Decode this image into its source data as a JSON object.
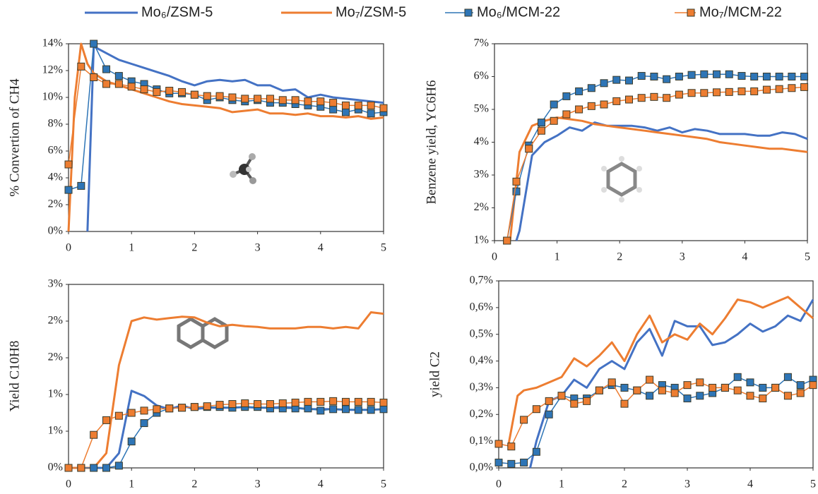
{
  "chart_data": [
    {
      "type": "line",
      "ylabel": "% Convertion of CH4",
      "xlim": [
        0,
        5
      ],
      "xticks": [
        0,
        1,
        2,
        3,
        4,
        5
      ],
      "ylim": [
        0,
        14
      ],
      "yticks": [
        {
          "value": 0,
          "label": "0%"
        },
        {
          "value": 2,
          "label": "2%"
        },
        {
          "value": 4,
          "label": "4%"
        },
        {
          "value": 6,
          "label": "6%"
        },
        {
          "value": 8,
          "label": "8%"
        },
        {
          "value": 10,
          "label": "10%"
        },
        {
          "value": 12,
          "label": "12%"
        },
        {
          "value": 14,
          "label": "14%"
        }
      ],
      "series": [
        {
          "name": "Mo₆/ZSM-5",
          "color": "#4472c4",
          "linewidth": 3,
          "x": [
            0.3,
            0.4,
            0.6,
            0.8,
            1,
            1.2,
            1.4,
            1.6,
            1.8,
            2,
            2.2,
            2.4,
            2.6,
            2.8,
            3,
            3.2,
            3.4,
            3.6,
            3.8,
            4,
            4.2,
            4.4,
            4.6,
            4.8,
            5
          ],
          "values": [
            0,
            13.8,
            13.3,
            12.8,
            12.5,
            12.2,
            11.9,
            11.6,
            11.2,
            10.9,
            11.2,
            11.3,
            11.2,
            11.3,
            10.9,
            10.9,
            10.5,
            10.6,
            10.0,
            10.2,
            10.0,
            9.9,
            9.8,
            9.7,
            9.6
          ]
        },
        {
          "name": "Mo₇/ZSM-5",
          "color": "#ed7d31",
          "linewidth": 3,
          "x": [
            0,
            0.1,
            0.2,
            0.3,
            0.4,
            0.6,
            0.8,
            1,
            1.2,
            1.4,
            1.6,
            1.8,
            2,
            2.2,
            2.4,
            2.6,
            2.8,
            3,
            3.2,
            3.4,
            3.6,
            3.8,
            4,
            4.2,
            4.4,
            4.6,
            4.8,
            5
          ],
          "values": [
            0,
            10,
            14,
            12.5,
            11.8,
            11.2,
            10.9,
            10.6,
            10.3,
            10.0,
            9.7,
            9.5,
            9.4,
            9.3,
            9.2,
            8.9,
            9.0,
            9.1,
            8.8,
            8.8,
            8.7,
            8.8,
            8.6,
            8.6,
            8.5,
            8.6,
            8.4,
            8.5
          ]
        },
        {
          "name": "Mo₆/MCM-22",
          "color": "#2e75b6",
          "linewidth": 1.5,
          "marker": "square",
          "x": [
            0,
            0.2,
            0.4,
            0.6,
            0.8,
            1,
            1.2,
            1.4,
            1.6,
            1.8,
            2,
            2.2,
            2.4,
            2.6,
            2.8,
            3,
            3.2,
            3.4,
            3.6,
            3.8,
            4,
            4.2,
            4.4,
            4.6,
            4.8,
            5
          ],
          "values": [
            3.1,
            3.4,
            14,
            12.1,
            11.6,
            11.2,
            11.0,
            10.6,
            10.3,
            10.3,
            10.2,
            9.8,
            10.0,
            9.8,
            9.7,
            9.8,
            9.6,
            9.6,
            9.5,
            9.4,
            9.3,
            9.1,
            8.9,
            9.1,
            8.8,
            8.9
          ]
        },
        {
          "name": "Mo₇/MCM-22",
          "color": "#ed7d31",
          "linewidth": 1.5,
          "marker": "square",
          "x": [
            0,
            0.2,
            0.4,
            0.6,
            0.8,
            1,
            1.2,
            1.4,
            1.6,
            1.8,
            2,
            2.2,
            2.4,
            2.6,
            2.8,
            3,
            3.2,
            3.4,
            3.6,
            3.8,
            4,
            4.2,
            4.4,
            4.6,
            4.8,
            5
          ],
          "values": [
            5.0,
            12.3,
            11.5,
            11.0,
            11.0,
            10.8,
            10.6,
            10.4,
            10.5,
            10.4,
            10.2,
            10.1,
            10.1,
            10.0,
            9.9,
            9.9,
            9.9,
            9.8,
            9.8,
            9.7,
            9.7,
            9.6,
            9.4,
            9.4,
            9.4,
            9.2
          ]
        }
      ]
    },
    {
      "type": "line",
      "ylabel": "Benzene yield, YC6H6",
      "xlim": [
        0,
        5
      ],
      "xticks": [
        0,
        1,
        2,
        3,
        4,
        5
      ],
      "ylim": [
        1,
        7
      ],
      "yticks": [
        {
          "value": 1,
          "label": "1%"
        },
        {
          "value": 2,
          "label": "2%"
        },
        {
          "value": 3,
          "label": "3%"
        },
        {
          "value": 4,
          "label": "4%"
        },
        {
          "value": 5,
          "label": "5%"
        },
        {
          "value": 6,
          "label": "6%"
        },
        {
          "value": 7,
          "label": "7%"
        }
      ],
      "series": [
        {
          "color": "#4472c4",
          "linewidth": 3,
          "x": [
            0.35,
            0.4,
            0.6,
            0.8,
            1,
            1.2,
            1.4,
            1.6,
            1.8,
            2,
            2.2,
            2.4,
            2.6,
            2.8,
            3,
            3.2,
            3.4,
            3.6,
            3.8,
            4,
            4.2,
            4.4,
            4.6,
            4.8,
            5
          ],
          "values": [
            1.0,
            1.3,
            3.6,
            4.0,
            4.2,
            4.45,
            4.35,
            4.6,
            4.5,
            4.5,
            4.5,
            4.45,
            4.35,
            4.45,
            4.3,
            4.4,
            4.35,
            4.25,
            4.25,
            4.25,
            4.2,
            4.2,
            4.3,
            4.25,
            4.1
          ]
        },
        {
          "color": "#ed7d31",
          "linewidth": 3,
          "x": [
            0.25,
            0.4,
            0.6,
            0.8,
            1,
            1.2,
            1.4,
            1.6,
            1.8,
            2,
            2.2,
            2.4,
            2.6,
            2.8,
            3,
            3.2,
            3.4,
            3.6,
            3.8,
            4,
            4.2,
            4.4,
            4.6,
            4.8,
            5
          ],
          "values": [
            1.0,
            3.7,
            4.5,
            4.65,
            4.75,
            4.7,
            4.65,
            4.55,
            4.5,
            4.45,
            4.4,
            4.35,
            4.3,
            4.25,
            4.2,
            4.15,
            4.1,
            4.0,
            3.95,
            3.9,
            3.85,
            3.8,
            3.8,
            3.75,
            3.7
          ]
        },
        {
          "color": "#2e75b6",
          "linewidth": 1.5,
          "marker": "square",
          "x": [
            0.2,
            0.35,
            0.55,
            0.75,
            0.95,
            1.15,
            1.35,
            1.55,
            1.75,
            1.95,
            2.15,
            2.35,
            2.55,
            2.75,
            2.95,
            3.15,
            3.35,
            3.55,
            3.75,
            3.95,
            4.15,
            4.35,
            4.55,
            4.75,
            4.95
          ],
          "values": [
            1.0,
            2.5,
            3.9,
            4.6,
            5.15,
            5.4,
            5.55,
            5.65,
            5.8,
            5.9,
            5.88,
            6.02,
            6.0,
            5.92,
            6.0,
            6.05,
            6.07,
            6.07,
            6.07,
            6.02,
            6.0,
            6.0,
            6.0,
            6.0,
            6.0
          ]
        },
        {
          "color": "#ed7d31",
          "linewidth": 1.5,
          "marker": "square",
          "x": [
            0.2,
            0.35,
            0.55,
            0.75,
            0.95,
            1.15,
            1.35,
            1.55,
            1.75,
            1.95,
            2.15,
            2.35,
            2.55,
            2.75,
            2.95,
            3.15,
            3.35,
            3.55,
            3.75,
            3.95,
            4.15,
            4.35,
            4.55,
            4.75,
            4.95
          ],
          "values": [
            1.0,
            2.8,
            3.8,
            4.35,
            4.65,
            4.85,
            5.0,
            5.1,
            5.15,
            5.25,
            5.3,
            5.35,
            5.38,
            5.35,
            5.45,
            5.5,
            5.5,
            5.52,
            5.53,
            5.55,
            5.55,
            5.6,
            5.62,
            5.65,
            5.68
          ]
        }
      ]
    },
    {
      "type": "line",
      "ylabel": "Yield C10H8",
      "xlim": [
        0,
        5
      ],
      "xticks": [
        0,
        1,
        2,
        3,
        4,
        5
      ],
      "ylim": [
        0,
        2.5
      ],
      "yticks": [
        {
          "value": 0,
          "label": "0%"
        },
        {
          "value": 0.5,
          "label": "1%"
        },
        {
          "value": 1,
          "label": "1%"
        },
        {
          "value": 1.5,
          "label": "2%"
        },
        {
          "value": 2,
          "label": "2%"
        },
        {
          "value": 2.5,
          "label": "3%"
        }
      ],
      "series": [
        {
          "color": "#4472c4",
          "linewidth": 3,
          "x": [
            0,
            0.2,
            0.4,
            0.6,
            0.8,
            1,
            1.2,
            1.4,
            1.6,
            1.8,
            2,
            2.2,
            2.4,
            2.6,
            2.8,
            3,
            3.2,
            3.4,
            3.6,
            3.8,
            4,
            4.2,
            4.4,
            4.6,
            4.8,
            5
          ],
          "values": [
            0,
            0,
            0,
            0,
            0.2,
            1.05,
            0.98,
            0.85,
            0.8,
            0.85,
            0.8,
            0.82,
            0.82,
            0.82,
            0.83,
            0.82,
            0.82,
            0.83,
            0.82,
            0.8,
            0.8,
            0.8,
            0.79,
            0.79,
            0.79,
            0.8
          ]
        },
        {
          "color": "#ed7d31",
          "linewidth": 3,
          "x": [
            0,
            0.2,
            0.4,
            0.6,
            0.8,
            1,
            1.2,
            1.4,
            1.6,
            1.8,
            2,
            2.2,
            2.4,
            2.6,
            2.8,
            3,
            3.2,
            3.4,
            3.6,
            3.8,
            4,
            4.2,
            4.4,
            4.6,
            4.8,
            5
          ],
          "values": [
            0,
            0,
            0,
            0.2,
            1.4,
            2.0,
            2.05,
            2.02,
            2.04,
            2.06,
            2.05,
            1.98,
            1.93,
            1.95,
            1.93,
            1.92,
            1.9,
            1.9,
            1.9,
            1.92,
            1.92,
            1.9,
            1.92,
            1.9,
            2.12,
            2.1
          ]
        },
        {
          "color": "#2e75b6",
          "linewidth": 1.5,
          "marker": "square",
          "x": [
            0,
            0.2,
            0.4,
            0.6,
            0.8,
            1,
            1.2,
            1.4,
            1.6,
            1.8,
            2,
            2.2,
            2.4,
            2.6,
            2.8,
            3,
            3.2,
            3.4,
            3.6,
            3.8,
            4,
            4.2,
            4.4,
            4.6,
            4.8,
            5
          ],
          "values": [
            0,
            0,
            0,
            0,
            0.03,
            0.36,
            0.61,
            0.75,
            0.81,
            0.82,
            0.83,
            0.83,
            0.83,
            0.82,
            0.83,
            0.83,
            0.81,
            0.81,
            0.81,
            0.81,
            0.78,
            0.8,
            0.8,
            0.79,
            0.79,
            0.8
          ]
        },
        {
          "color": "#ed7d31",
          "linewidth": 1.5,
          "marker": "square",
          "x": [
            0,
            0.2,
            0.4,
            0.6,
            0.8,
            1,
            1.2,
            1.4,
            1.6,
            1.8,
            2,
            2.2,
            2.4,
            2.6,
            2.8,
            3,
            3.2,
            3.4,
            3.6,
            3.8,
            4,
            4.2,
            4.4,
            4.6,
            4.8,
            5
          ],
          "values": [
            0,
            0,
            0.45,
            0.65,
            0.71,
            0.75,
            0.78,
            0.8,
            0.81,
            0.82,
            0.83,
            0.84,
            0.86,
            0.87,
            0.88,
            0.87,
            0.87,
            0.88,
            0.89,
            0.9,
            0.9,
            0.91,
            0.9,
            0.9,
            0.9,
            0.89
          ]
        }
      ]
    },
    {
      "type": "line",
      "ylabel": "yield C2",
      "xlim": [
        0,
        5
      ],
      "xticks": [
        0,
        1,
        2,
        3,
        4,
        5
      ],
      "ylim": [
        0,
        0.7
      ],
      "yticks": [
        {
          "value": 0,
          "label": "0,0%"
        },
        {
          "value": 0.1,
          "label": "0,1%"
        },
        {
          "value": 0.2,
          "label": "0,2%"
        },
        {
          "value": 0.3,
          "label": "0,3%"
        },
        {
          "value": 0.4,
          "label": "0,4%"
        },
        {
          "value": 0.5,
          "label": "0,5%"
        },
        {
          "value": 0.6,
          "label": "0,6%"
        },
        {
          "value": 0.7,
          "label": "0,7%"
        }
      ],
      "series": [
        {
          "color": "#4472c4",
          "linewidth": 3,
          "x": [
            0.5,
            0.6,
            0.8,
            1,
            1.2,
            1.4,
            1.6,
            1.8,
            2,
            2.2,
            2.4,
            2.6,
            2.8,
            3,
            3.2,
            3.4,
            3.6,
            3.8,
            4,
            4.2,
            4.4,
            4.6,
            4.8,
            5
          ],
          "values": [
            0,
            0.1,
            0.25,
            0.27,
            0.33,
            0.3,
            0.37,
            0.4,
            0.37,
            0.47,
            0.52,
            0.42,
            0.55,
            0.53,
            0.53,
            0.46,
            0.47,
            0.5,
            0.54,
            0.51,
            0.53,
            0.57,
            0.55,
            0.63
          ]
        },
        {
          "color": "#ed7d31",
          "linewidth": 3,
          "x": [
            0.15,
            0.3,
            0.4,
            0.6,
            0.8,
            1,
            1.2,
            1.4,
            1.6,
            1.8,
            2,
            2.2,
            2.4,
            2.6,
            2.8,
            3,
            3.2,
            3.4,
            3.6,
            3.8,
            4,
            4.2,
            4.4,
            4.6,
            4.8,
            5
          ],
          "values": [
            0.08,
            0.27,
            0.29,
            0.3,
            0.32,
            0.34,
            0.41,
            0.38,
            0.42,
            0.47,
            0.4,
            0.5,
            0.57,
            0.47,
            0.5,
            0.48,
            0.54,
            0.5,
            0.56,
            0.63,
            0.62,
            0.6,
            0.62,
            0.64,
            0.6,
            0.56
          ]
        },
        {
          "color": "#2e75b6",
          "linewidth": 1.5,
          "marker": "square",
          "x": [
            0,
            0.2,
            0.4,
            0.6,
            0.8,
            1,
            1.2,
            1.4,
            1.6,
            1.8,
            2,
            2.2,
            2.4,
            2.6,
            2.8,
            3,
            3.2,
            3.4,
            3.6,
            3.8,
            4,
            4.2,
            4.4,
            4.6,
            4.8,
            5
          ],
          "values": [
            0.02,
            0.015,
            0.02,
            0.06,
            0.2,
            0.27,
            0.26,
            0.26,
            0.29,
            0.31,
            0.3,
            0.29,
            0.27,
            0.31,
            0.3,
            0.26,
            0.27,
            0.28,
            0.3,
            0.34,
            0.32,
            0.3,
            0.3,
            0.34,
            0.31,
            0.33
          ]
        },
        {
          "color": "#ed7d31",
          "linewidth": 1.5,
          "marker": "square",
          "x": [
            0,
            0.2,
            0.4,
            0.6,
            0.8,
            1,
            1.2,
            1.4,
            1.6,
            1.8,
            2,
            2.2,
            2.4,
            2.6,
            2.8,
            3,
            3.2,
            3.4,
            3.6,
            3.8,
            4,
            4.2,
            4.4,
            4.6,
            4.8,
            5
          ],
          "values": [
            0.09,
            0.08,
            0.18,
            0.22,
            0.25,
            0.27,
            0.24,
            0.25,
            0.29,
            0.32,
            0.24,
            0.29,
            0.33,
            0.29,
            0.28,
            0.31,
            0.32,
            0.3,
            0.3,
            0.29,
            0.27,
            0.26,
            0.3,
            0.27,
            0.28,
            0.31
          ]
        }
      ]
    }
  ]
}
